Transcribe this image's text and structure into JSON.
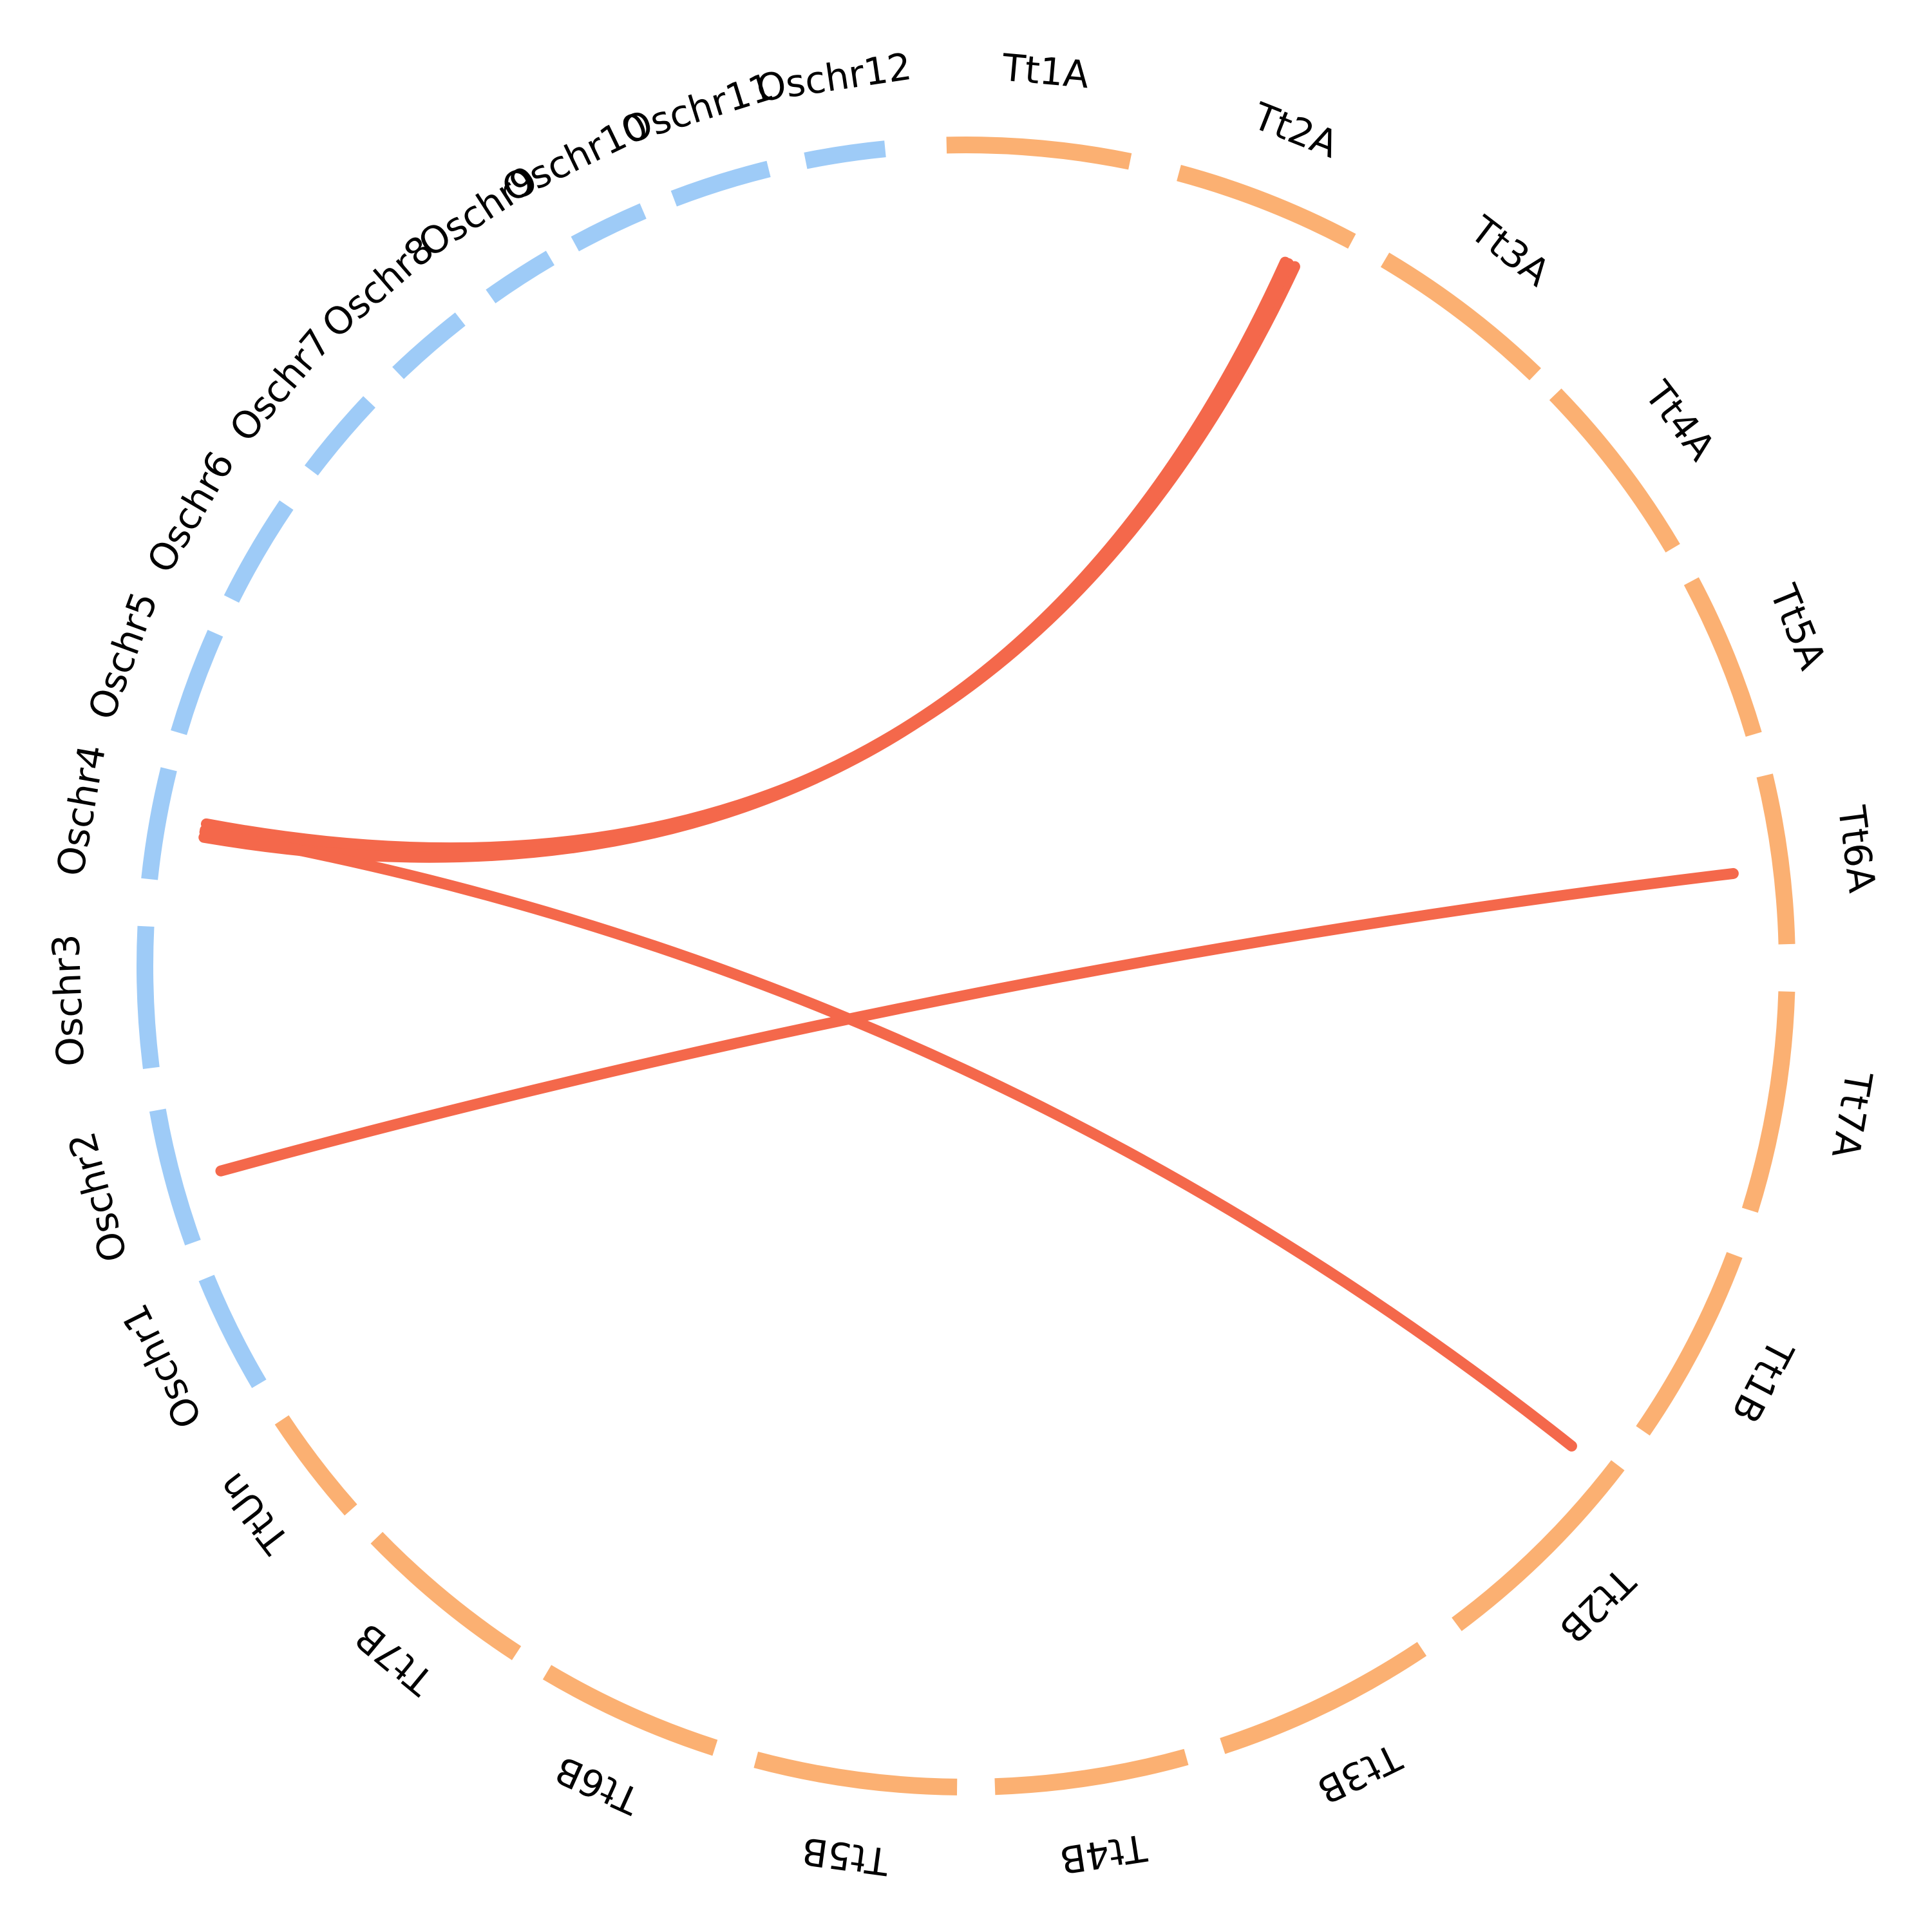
{
  "colors": {
    "rice": "#9ecbf7",
    "wheat": "#fbb072",
    "link": "#f4684b",
    "label": "#000000"
  },
  "segments": [
    {
      "label": "Tt1A",
      "group": "wheat",
      "start": 4.0,
      "end": 23.5
    },
    {
      "label": "Tt2A",
      "group": "wheat",
      "start": 28.8,
      "end": 48.5
    },
    {
      "label": "Tt3A",
      "group": "wheat",
      "start": 52.5,
      "end": 72.5
    },
    {
      "label": "Tt4A",
      "group": "wheat",
      "start": 75.5,
      "end": 96.0
    },
    {
      "label": "Tt5A",
      "group": "wheat",
      "start": 100.0,
      "end": 117.5
    },
    {
      "label": "Tt6A",
      "group": "wheat",
      "start": 122.0,
      "end": 140.0
    },
    {
      "label": "Tt7A",
      "group": "wheat",
      "start": 145.0,
      "end": 168.5
    },
    {
      "label": "Tt1B",
      "group": "wheat",
      "start": 173.5,
      "end": 194.5
    },
    {
      "label": "Tt2B",
      "group": "wheat",
      "start": 199.0,
      "end": 223.0
    },
    {
      "label": "Tt3B",
      "group": "wheat",
      "start": 227.5,
      "end": 251.0
    },
    {
      "label": "Tt4B",
      "group": "wheat",
      "start": 255.0,
      "end": 275.5
    },
    {
      "label": "Tt5B",
      "group": "wheat",
      "start": 279.5,
      "end": 301.0
    },
    {
      "label": "Tt6B",
      "group": "wheat",
      "start": 305.5,
      "end": 325.0
    },
    {
      "label": "Tt7B",
      "group": "wheat",
      "start": 328.8,
      "end": 348.0
    },
    {
      "label": "TtUn",
      "group": "wheat",
      "start": 352.0,
      "end": 364.0
    },
    {
      "label": "Oschr1",
      "group": "rice",
      "start": 368.5,
      "end": 381.0
    },
    {
      "label": "Oschr2",
      "group": "rice",
      "start": 385.0,
      "end": 399.5
    },
    {
      "label": "Oschr3",
      "group": "rice",
      "start": 404.0,
      "end": 419.0
    },
    {
      "label": "Oschr4",
      "group": "rice",
      "start": 424.0,
      "end": 435.8
    },
    {
      "label": "Oschr5",
      "group": "rice",
      "start": 439.8,
      "end": 451.0
    },
    {
      "label": "Oschr6",
      "group": "rice",
      "start": 455.0,
      "end": 466.5
    },
    {
      "label": "Oschr7",
      "group": "rice",
      "start": 471.0,
      "end": 480.5
    },
    {
      "label": "Oschr8",
      "group": "rice",
      "start": 484.8,
      "end": 493.5
    },
    {
      "label": "Oschr9",
      "group": "rice",
      "start": 497.5,
      "end": 505.0
    },
    {
      "label": "Oschr10",
      "group": "rice",
      "start": 508.0,
      "end": 516.0
    },
    {
      "label": "Oschr11",
      "group": "rice",
      "start": 519.5,
      "end": 530.0
    },
    {
      "label": "Oschr12",
      "group": "rice",
      "start": 534.0,
      "end": 542.5
    }
  ],
  "total": 545,
  "links": [
    {
      "from": "Oschr4",
      "from_pos": 0.52,
      "to": "Tt2A",
      "to_pos": 0.72
    },
    {
      "from": "Oschr4",
      "from_pos": 0.58,
      "to": "Tt2A",
      "to_pos": 0.78
    },
    {
      "from": "Oschr4",
      "from_pos": 0.45,
      "to": "Tt2A",
      "to_pos": 0.74
    },
    {
      "from": "Oschr4",
      "from_pos": 0.5,
      "to": "Tt2B",
      "to_pos": 0.06
    },
    {
      "from": "Oschr2",
      "from_pos": 0.45,
      "to": "Tt6A",
      "to_pos": 0.55
    }
  ]
}
